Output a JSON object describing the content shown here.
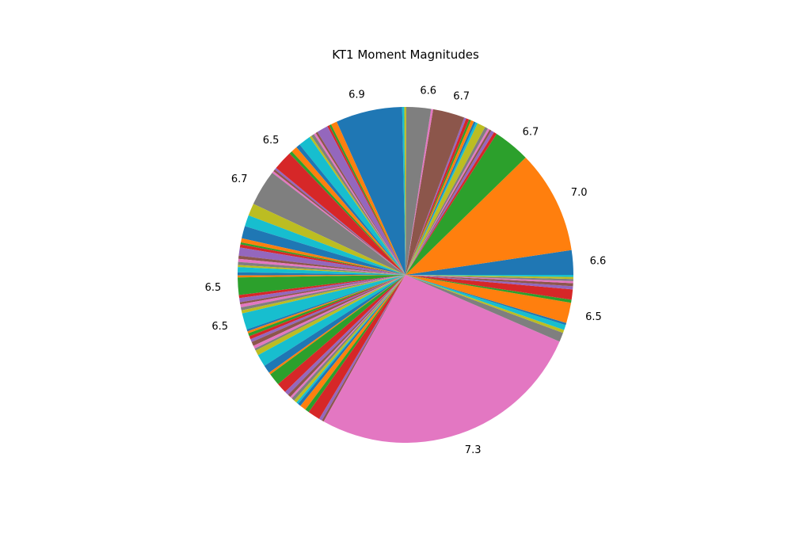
{
  "chart_data": {
    "type": "pie",
    "title": "KT1 Moment Magnitudes",
    "start_angle_deg": 0,
    "direction": "counterclockwise",
    "palette": [
      "#1f77b4",
      "#ff7f0e",
      "#2ca02c",
      "#d62728",
      "#9467bd",
      "#8c564b",
      "#e377c2",
      "#7f7f7f",
      "#bcbd22",
      "#17becf"
    ],
    "slices": [
      {
        "value": 2.4,
        "label": "6.6"
      },
      {
        "value": 10.1,
        "label": "7.0"
      },
      {
        "value": 3.6,
        "label": "6.7"
      },
      {
        "value": 0.3,
        "label": ""
      },
      {
        "value": 0.3,
        "label": ""
      },
      {
        "value": 0.2,
        "label": ""
      },
      {
        "value": 0.2,
        "label": ""
      },
      {
        "value": 0.3,
        "label": ""
      },
      {
        "value": 0.8,
        "label": ""
      },
      {
        "value": 0.2,
        "label": ""
      },
      {
        "value": 0.2,
        "label": ""
      },
      {
        "value": 0.3,
        "label": ""
      },
      {
        "value": 0.2,
        "label": ""
      },
      {
        "value": 0.3,
        "label": ""
      },
      {
        "value": 0.2,
        "label": ""
      },
      {
        "value": 3.1,
        "label": "6.7"
      },
      {
        "value": 0.2,
        "label": ""
      },
      {
        "value": 2.4,
        "label": "6.6"
      },
      {
        "value": 0.2,
        "label": ""
      },
      {
        "value": 0.2,
        "label": ""
      },
      {
        "value": 6.5,
        "label": "6.9"
      },
      {
        "value": 0.6,
        "label": ""
      },
      {
        "value": 0.2,
        "label": ""
      },
      {
        "value": 0.2,
        "label": ""
      },
      {
        "value": 1.1,
        "label": ""
      },
      {
        "value": 0.2,
        "label": ""
      },
      {
        "value": 0.2,
        "label": ""
      },
      {
        "value": 0.3,
        "label": ""
      },
      {
        "value": 0.2,
        "label": ""
      },
      {
        "value": 1.2,
        "label": ""
      },
      {
        "value": 0.4,
        "label": ""
      },
      {
        "value": 0.6,
        "label": ""
      },
      {
        "value": 0.3,
        "label": "6.5"
      },
      {
        "value": 1.9,
        "label": ""
      },
      {
        "value": 0.2,
        "label": ""
      },
      {
        "value": 0.2,
        "label": ""
      },
      {
        "value": 0.2,
        "label": ""
      },
      {
        "value": 3.5,
        "label": "6.7"
      },
      {
        "value": 1.2,
        "label": ""
      },
      {
        "value": 1.1,
        "label": ""
      },
      {
        "value": 1.2,
        "label": ""
      },
      {
        "value": 0.4,
        "label": ""
      },
      {
        "value": 0.2,
        "label": ""
      },
      {
        "value": 0.3,
        "label": ""
      },
      {
        "value": 0.8,
        "label": ""
      },
      {
        "value": 0.3,
        "label": ""
      },
      {
        "value": 0.3,
        "label": ""
      },
      {
        "value": 0.3,
        "label": ""
      },
      {
        "value": 0.2,
        "label": ""
      },
      {
        "value": 0.5,
        "label": ""
      },
      {
        "value": 0.3,
        "label": ""
      },
      {
        "value": 0.2,
        "label": ""
      },
      {
        "value": 1.7,
        "label": "6.5"
      },
      {
        "value": 0.3,
        "label": ""
      },
      {
        "value": 0.4,
        "label": ""
      },
      {
        "value": 0.2,
        "label": ""
      },
      {
        "value": 0.3,
        "label": ""
      },
      {
        "value": 0.3,
        "label": ""
      },
      {
        "value": 0.3,
        "label": ""
      },
      {
        "value": 1.6,
        "label": "6.5"
      },
      {
        "value": 0.2,
        "label": ""
      },
      {
        "value": 0.2,
        "label": ""
      },
      {
        "value": 0.3,
        "label": ""
      },
      {
        "value": 0.3,
        "label": ""
      },
      {
        "value": 0.3,
        "label": ""
      },
      {
        "value": 0.4,
        "label": ""
      },
      {
        "value": 0.3,
        "label": ""
      },
      {
        "value": 0.2,
        "label": ""
      },
      {
        "value": 0.5,
        "label": ""
      },
      {
        "value": 1.2,
        "label": ""
      },
      {
        "value": 0.8,
        "label": ""
      },
      {
        "value": 0.2,
        "label": ""
      },
      {
        "value": 1.2,
        "label": ""
      },
      {
        "value": 1.0,
        "label": ""
      },
      {
        "value": 0.4,
        "label": ""
      },
      {
        "value": 0.3,
        "label": ""
      },
      {
        "value": 0.2,
        "label": ""
      },
      {
        "value": 0.3,
        "label": ""
      },
      {
        "value": 0.3,
        "label": ""
      },
      {
        "value": 0.2,
        "label": ""
      },
      {
        "value": 0.3,
        "label": ""
      },
      {
        "value": 0.6,
        "label": ""
      },
      {
        "value": 0.4,
        "label": ""
      },
      {
        "value": 1.2,
        "label": ""
      },
      {
        "value": 0.3,
        "label": ""
      },
      {
        "value": 0.2,
        "label": ""
      },
      {
        "value": 27.0,
        "label": "7.3"
      },
      {
        "value": 0.9,
        "label": ""
      },
      {
        "value": 0.3,
        "label": ""
      },
      {
        "value": 0.5,
        "label": ""
      },
      {
        "value": 0.2,
        "label": ""
      },
      {
        "value": 2.0,
        "label": "6.5"
      },
      {
        "value": 0.3,
        "label": ""
      },
      {
        "value": 1.0,
        "label": ""
      },
      {
        "value": 0.3,
        "label": ""
      },
      {
        "value": 0.3,
        "label": ""
      },
      {
        "value": 0.2,
        "label": ""
      },
      {
        "value": 0.2,
        "label": ""
      },
      {
        "value": 0.2,
        "label": ""
      },
      {
        "value": 0.2,
        "label": ""
      }
    ]
  }
}
